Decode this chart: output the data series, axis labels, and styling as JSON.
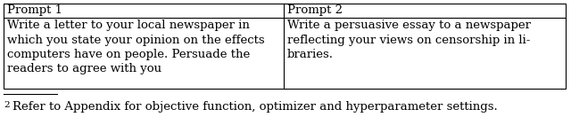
{
  "col1_header": "Prompt 1",
  "col2_header": "Prompt 2",
  "col1_body": "Write a letter to your local newspaper in\nwhich you state your opinion on the effects\ncomputers have on people. Persuade the\nreaders to agree with you",
  "col2_body": "Write a persuasive essay to a newspaper\nreflecting your views on censorship in li-\nbraries.",
  "footnote_superscript": "2",
  "footnote_text": "Refer to Appendix for objective function, optimizer and hyperparameter settings.",
  "background_color": "#ffffff",
  "border_color": "#000000",
  "font_size": 9.5,
  "footnote_font_size": 9.5
}
